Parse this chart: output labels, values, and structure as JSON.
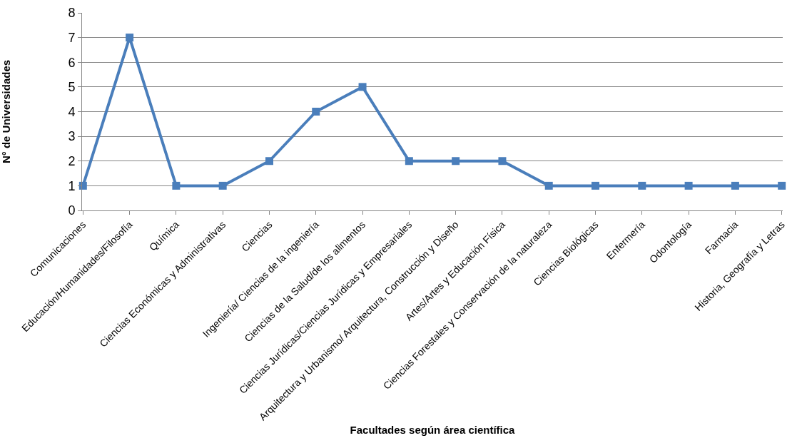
{
  "chart_data": {
    "type": "line",
    "xlabel": "Facultades según área científica",
    "ylabel": "N° de Universidades",
    "categories": [
      "Comunicaciones",
      "Educación/Humanidades/Filosofía",
      "Química",
      "Ciencias Económicas y Administrativas",
      "Ciencias",
      "Ingeniería/ Ciencias de la ingeniería",
      "Ciencias de la Salud/de los alimentos",
      "Ciencias Jurídicas/Ciencias Jurídicas y Empresariales",
      "Arquitectura y Urbanismo/ Arquitectura, Construcción y Diseño",
      "Artes/Artes y Educación Física",
      "Ciencias Forestales y Conservación de la naturaleza",
      "Ciencias Biológicas",
      "Enfermería",
      "Odontología",
      "Farmacia",
      "Historia, Geografía y Letras"
    ],
    "series": [
      {
        "color": "#4a7ebb",
        "values": [
          1,
          7,
          1,
          1,
          2,
          4,
          5,
          2,
          2,
          2,
          1,
          1,
          1,
          1,
          1,
          1
        ]
      }
    ],
    "ylim": [
      0,
      8
    ],
    "yticks": [
      0,
      1,
      2,
      3,
      4,
      5,
      6,
      7,
      8
    ],
    "grid": "y",
    "marker": "square",
    "line_style": "solid"
  }
}
